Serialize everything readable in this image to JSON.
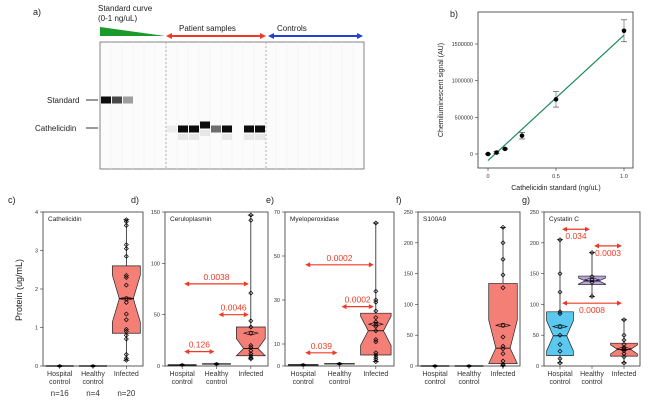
{
  "panel_a": {
    "label": "a)",
    "standard_curve_label_1": "Standard curve",
    "standard_curve_label_2": "(0-1 ng/uL)",
    "patient_label": "Patient samples",
    "controls_label": "Controls",
    "standard_band_label": "Standard",
    "cathelicidin_band_label": "Cathelicidin",
    "colors": {
      "standard": "#1a9a2a",
      "patient": "#ee3a24",
      "controls": "#1f3fd8"
    },
    "bands": [
      {
        "lane": 1,
        "row": "standard",
        "intensity": 1.0
      },
      {
        "lane": 2,
        "row": "standard",
        "intensity": 0.75
      },
      {
        "lane": 3,
        "row": "standard",
        "intensity": 0.4
      },
      {
        "lane": 7,
        "row": "cathelicidin",
        "intensity": 0.08
      },
      {
        "lane": 8,
        "row": "cathelicidin",
        "intensity": 1.0
      },
      {
        "lane": 9,
        "row": "cathelicidin",
        "intensity": 1.0
      },
      {
        "lane": 10,
        "row": "cathelicidin_high",
        "intensity": 1.0
      },
      {
        "lane": 11,
        "row": "cathelicidin",
        "intensity": 0.6
      },
      {
        "lane": 12,
        "row": "cathelicidin",
        "intensity": 1.0
      },
      {
        "lane": 14,
        "row": "cathelicidin",
        "intensity": 1.0
      },
      {
        "lane": 15,
        "row": "cathelicidin",
        "intensity": 1.0
      }
    ]
  },
  "chart_data": [
    {
      "panel": "b)",
      "type": "scatter",
      "xlabel": "Cathelicidin standard (ng/uL)",
      "ylabel": "Chemiluminescent signal (AU)",
      "xlim": [
        -0.05,
        1.05
      ],
      "ylim": [
        -200000,
        1950000
      ],
      "xticks": [
        "0",
        "0.5",
        "1.0"
      ],
      "xtick_values": [
        0,
        0.5,
        1.0
      ],
      "yticks": [
        "0",
        "500000",
        "1000000",
        "1500000"
      ],
      "ytick_values": [
        0,
        500000,
        1000000,
        1500000
      ],
      "points": [
        {
          "x": 0,
          "y": 0,
          "err": 10000
        },
        {
          "x": 0.0625,
          "y": 20000,
          "err": 15000
        },
        {
          "x": 0.125,
          "y": 70000,
          "err": 10000
        },
        {
          "x": 0.25,
          "y": 250000,
          "err": 45000
        },
        {
          "x": 0.5,
          "y": 745000,
          "err": 105000
        },
        {
          "x": 1.0,
          "y": 1680000,
          "err": 150000
        }
      ],
      "fit": {
        "x": [
          0,
          1.0
        ],
        "y": [
          -90000,
          1620000
        ],
        "color": "#1a8a5a"
      }
    },
    {
      "panel": "c)",
      "title": "Cathelicidin",
      "type": "box",
      "ylabel": "Protein (ug/mL)",
      "yticks": [
        0,
        1,
        2,
        3,
        4
      ],
      "ylim": [
        0,
        4
      ],
      "categories": [
        "Hospital control",
        "Healthy control",
        "Infected"
      ],
      "n_labels": [
        "n=16",
        "n=4",
        "n=20"
      ],
      "groups": [
        {
          "zero": true
        },
        {
          "zero": true
        },
        {
          "color": "#f47f77",
          "min": 0.15,
          "q1": 0.85,
          "median": 1.75,
          "q3": 2.6,
          "max": 3.8,
          "mean": 1.75,
          "points": [
            3.8,
            3.75,
            3.65,
            3.15,
            3.05,
            2.85,
            2.35,
            2.3,
            2.1,
            1.75,
            1.65,
            1.35,
            1.2,
            0.95,
            0.9,
            0.8,
            0.7,
            0.3,
            0.2,
            0.15
          ]
        }
      ],
      "comparisons": []
    },
    {
      "panel": "d)",
      "title": "Ceruloplasmin",
      "type": "box",
      "yticks": [
        0,
        50,
        100,
        150
      ],
      "ylim": [
        0,
        150
      ],
      "categories": [
        "Hospital control",
        "Healthy control",
        "Infected"
      ],
      "groups": [
        {
          "zero": true,
          "level": 1
        },
        {
          "zero": true,
          "level": 2
        },
        {
          "color": "#f47f77",
          "min": 7,
          "q1": 10,
          "median": 17,
          "q3": 38,
          "max": 147,
          "mean": 32,
          "points": [
            147,
            142,
            71,
            44,
            38,
            32,
            20,
            18,
            15,
            12,
            10,
            8,
            7
          ]
        }
      ],
      "comparisons": [
        {
          "from": 0,
          "to": 2,
          "y": 80,
          "p": "0.0038"
        },
        {
          "from": 1,
          "to": 2,
          "y": 50,
          "p": "0.0046"
        },
        {
          "from": 0,
          "to": 1,
          "y": 14,
          "p": "0.126"
        }
      ]
    },
    {
      "panel": "e)",
      "title": "Myeloperoxidase",
      "type": "box",
      "yticks": [
        0,
        10,
        30,
        50,
        70
      ],
      "ylim": [
        0,
        70
      ],
      "categories": [
        "Hospital control",
        "Healthy control",
        "Infected"
      ],
      "groups": [
        {
          "zero": true,
          "level": 0.5
        },
        {
          "zero": true,
          "level": 1
        },
        {
          "color": "#f47f77",
          "min": 2,
          "q1": 5,
          "median": 16,
          "q3": 24,
          "max": 65,
          "mean": 19,
          "points": [
            65,
            34,
            30,
            29,
            25,
            22,
            20,
            19,
            18,
            16,
            12,
            11,
            6,
            5,
            4,
            3,
            2
          ]
        }
      ],
      "comparisons": [
        {
          "from": 0,
          "to": 2,
          "y": 46,
          "p": "0.0002"
        },
        {
          "from": 1,
          "to": 2,
          "y": 27,
          "p": "0.0002"
        },
        {
          "from": 0,
          "to": 1,
          "y": 6,
          "p": "0.039"
        }
      ]
    },
    {
      "panel": "f)",
      "title": "S100A9",
      "type": "box",
      "yticks": [
        0,
        50,
        100,
        150,
        200,
        250
      ],
      "ylim": [
        0,
        250
      ],
      "categories": [
        "Hospital control",
        "Healthy control",
        "Infected"
      ],
      "groups": [
        {
          "zero": true
        },
        {
          "zero": true
        },
        {
          "color": "#f47f77",
          "min": 0,
          "q1": 4,
          "median": 29,
          "q3": 134,
          "max": 225,
          "mean": 66,
          "points": [
            225,
            200,
            173,
            148,
            127,
            66,
            47,
            32,
            28,
            20,
            8,
            3,
            1
          ]
        }
      ],
      "comparisons": []
    },
    {
      "panel": "g)",
      "title": "Cystatin C",
      "type": "box",
      "yticks": [
        0,
        50,
        100,
        150,
        200,
        250
      ],
      "ylim": [
        0,
        250
      ],
      "categories": [
        "Hospital control",
        "Healthy control",
        "Infected"
      ],
      "groups": [
        {
          "color": "#5bc8f0",
          "min": 5,
          "q1": 17,
          "median": 49,
          "q3": 88,
          "max": 205,
          "mean": 64,
          "points": [
            205,
            150,
            120,
            88,
            85,
            64,
            50,
            35,
            24,
            12,
            5
          ]
        },
        {
          "color": "#b9a5dc",
          "min": 113,
          "q1": 132,
          "median": 138,
          "q3": 146,
          "max": 184,
          "mean": 140,
          "points": [
            184,
            145,
            140,
            136,
            113
          ]
        },
        {
          "color": "#f47f77",
          "min": 5,
          "q1": 16,
          "median": 27,
          "q3": 37,
          "max": 75,
          "mean": 28,
          "points": [
            75,
            50,
            42,
            35,
            30,
            28,
            25,
            20,
            15,
            5
          ]
        }
      ],
      "comparisons": [
        {
          "from": 0,
          "to": 1,
          "y": 222,
          "p": "0.034"
        },
        {
          "from": 1,
          "to": 2,
          "y": 195,
          "p": "0.0003"
        },
        {
          "from": 0,
          "to": 2,
          "y": 102,
          "p": "0.0008"
        }
      ]
    }
  ],
  "colors": {
    "pvalue_arrow": "#ee3a24"
  }
}
